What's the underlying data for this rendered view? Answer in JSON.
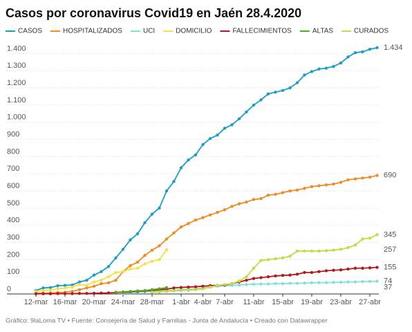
{
  "chart_data": {
    "type": "line",
    "title": "Casos por coronavirus Covid19 en Jaén 28.4.2020",
    "footer": "Gráfico: 9laLoma TV • Fuente: Consejería de Salud y Familias - Junta de Andalucía • Creado con Datawrapper",
    "categories": [
      "12-mar",
      null,
      null,
      null,
      "16-mar",
      null,
      null,
      null,
      "20-mar",
      null,
      null,
      null,
      "24-mar",
      null,
      null,
      null,
      "28-mar",
      null,
      null,
      null,
      "1-abr",
      null,
      null,
      "4-abr",
      null,
      null,
      "7-abr",
      null,
      null,
      null,
      "11-abr",
      null,
      null,
      null,
      "15-abr",
      null,
      null,
      null,
      "19-abr",
      null,
      null,
      null,
      "23-abr",
      null,
      null,
      null,
      "27-abr",
      null
    ],
    "ylim": [
      0,
      1450
    ],
    "yticks": [
      0,
      100,
      200,
      300,
      400,
      500,
      600,
      700,
      800,
      900,
      {
        "value": 1000,
        "label": "1.000"
      },
      {
        "value": 1100,
        "label": "1.100"
      },
      {
        "value": 1200,
        "label": "1.200"
      },
      {
        "value": 1300,
        "label": "1.300"
      },
      {
        "value": 1400,
        "label": "1.400"
      }
    ],
    "grid": true,
    "legend": "top",
    "series": [
      {
        "name": "CASOS",
        "color": "#1a9ec8",
        "values": [
          20,
          35,
          37,
          48,
          50,
          52,
          70,
          80,
          110,
          130,
          160,
          210,
          260,
          315,
          350,
          415,
          465,
          500,
          600,
          655,
          735,
          780,
          810,
          870,
          905,
          925,
          965,
          985,
          1020,
          1060,
          1100,
          1130,
          1165,
          1175,
          1185,
          1200,
          1230,
          1275,
          1295,
          1310,
          1315,
          1325,
          1345,
          1380,
          1405,
          1410,
          1425,
          1434
        ],
        "value_labels": [
          null,
          null,
          null,
          null,
          null,
          null,
          null,
          null,
          null,
          null,
          null,
          null,
          null,
          null,
          null,
          null,
          null,
          null,
          null,
          null,
          null,
          null,
          null,
          null,
          null,
          null,
          null,
          null,
          null,
          null,
          null,
          null,
          null,
          null,
          null,
          null,
          null,
          null,
          null,
          null,
          null,
          null,
          null,
          null,
          null,
          null,
          null,
          "1.434"
        ]
      },
      {
        "name": "HOSPITALIZADOS",
        "color": "#f08a24",
        "values": [
          5,
          5,
          5,
          8,
          10,
          15,
          25,
          35,
          45,
          60,
          65,
          80,
          130,
          165,
          185,
          225,
          255,
          280,
          320,
          355,
          390,
          410,
          430,
          445,
          460,
          475,
          490,
          510,
          525,
          535,
          550,
          555,
          575,
          580,
          590,
          600,
          605,
          615,
          625,
          630,
          635,
          640,
          650,
          665,
          670,
          675,
          680,
          690
        ]
      },
      {
        "name": "UCI",
        "color": "#7fe3da",
        "values": [
          null,
          null,
          null,
          null,
          null,
          null,
          null,
          null,
          null,
          null,
          null,
          null,
          5,
          8,
          10,
          12,
          15,
          18,
          20,
          22,
          25,
          28,
          30,
          35,
          40,
          45,
          48,
          50,
          52,
          55,
          57,
          58,
          58,
          60,
          60,
          62,
          62,
          63,
          65,
          66,
          66,
          67,
          68,
          70,
          70,
          72,
          73,
          74
        ]
      },
      {
        "name": "DOMICILIO",
        "color": "#f5e04a",
        "values": [
          15,
          20,
          22,
          30,
          35,
          40,
          55,
          50,
          70,
          80,
          100,
          125,
          130,
          145,
          150,
          175,
          190,
          200,
          257,
          null,
          null,
          null,
          null,
          null,
          null,
          null,
          null,
          null,
          null,
          null,
          null,
          null,
          null,
          null,
          null,
          null,
          null,
          null,
          null,
          null,
          null,
          null,
          null,
          null,
          null,
          null,
          null,
          null
        ]
      },
      {
        "name": "FALLECIMIENTOS",
        "color": "#b3191c",
        "values": [
          1,
          1,
          1,
          2,
          2,
          2,
          3,
          3,
          4,
          5,
          6,
          8,
          10,
          12,
          15,
          18,
          20,
          25,
          28,
          35,
          38,
          40,
          42,
          45,
          48,
          50,
          52,
          60,
          70,
          80,
          90,
          95,
          100,
          105,
          108,
          110,
          115,
          125,
          125,
          130,
          135,
          138,
          140,
          145,
          150,
          150,
          152,
          155
        ]
      },
      {
        "name": "ALTAS",
        "color": "#57a81f",
        "values": [
          null,
          null,
          null,
          null,
          null,
          null,
          null,
          null,
          null,
          null,
          null,
          10,
          12,
          15,
          18,
          20,
          25,
          30,
          37,
          null,
          null,
          null,
          null,
          null,
          null,
          null,
          null,
          null,
          null,
          null,
          null,
          null,
          null,
          null,
          null,
          null,
          null,
          null,
          null,
          null,
          null,
          null,
          null,
          null,
          null,
          null,
          null,
          null
        ]
      },
      {
        "name": "CURADOS",
        "color": "#c5da45",
        "values": [
          null,
          null,
          null,
          null,
          null,
          null,
          null,
          null,
          null,
          null,
          null,
          null,
          null,
          null,
          null,
          null,
          10,
          12,
          15,
          18,
          20,
          22,
          25,
          30,
          40,
          50,
          55,
          60,
          75,
          100,
          150,
          195,
          200,
          205,
          210,
          220,
          250,
          250,
          250,
          250,
          252,
          255,
          260,
          270,
          285,
          320,
          325,
          345
        ]
      }
    ]
  }
}
